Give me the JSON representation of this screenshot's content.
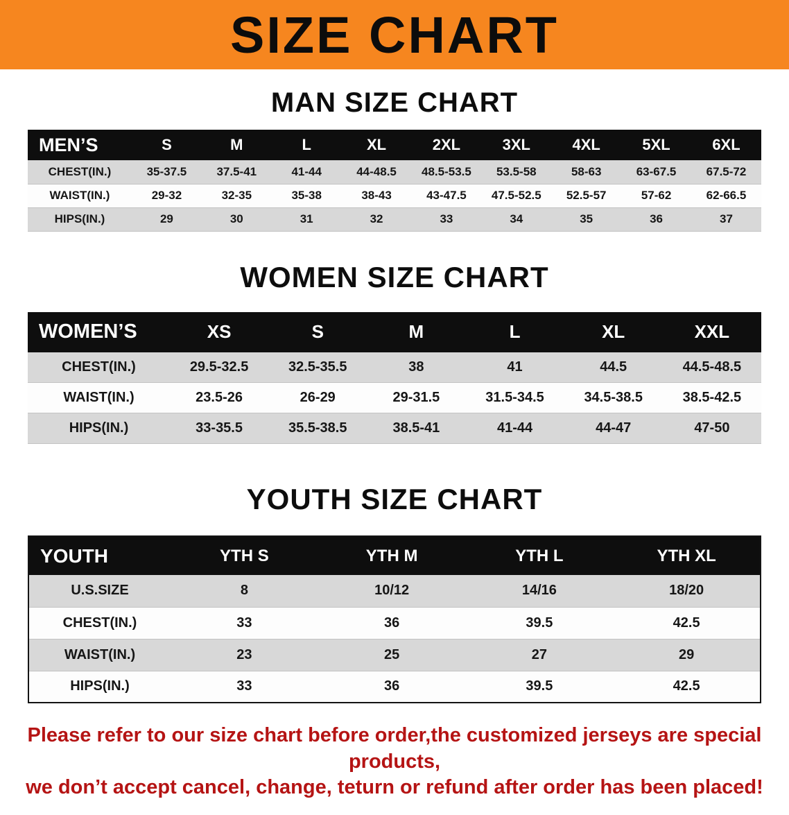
{
  "banner": {
    "title": "SIZE CHART",
    "bg_color": "#f6861f"
  },
  "sections": [
    {
      "heading": "MAN SIZE CHART",
      "table": {
        "header": [
          "MEN’S",
          "S",
          "M",
          "L",
          "XL",
          "2XL",
          "3XL",
          "4XL",
          "5XL",
          "6XL"
        ],
        "rows": [
          [
            "CHEST(IN.)",
            "35-37.5",
            "37.5-41",
            "41-44",
            "44-48.5",
            "48.5-53.5",
            "53.5-58",
            "58-63",
            "63-67.5",
            "67.5-72"
          ],
          [
            "WAIST(IN.)",
            "29-32",
            "32-35",
            "35-38",
            "38-43",
            "43-47.5",
            "47.5-52.5",
            "52.5-57",
            "57-62",
            "62-66.5"
          ],
          [
            "HIPS(IN.)",
            "29",
            "30",
            "31",
            "32",
            "33",
            "34",
            "35",
            "36",
            "37"
          ]
        ]
      }
    },
    {
      "heading": "WOMEN SIZE CHART",
      "table": {
        "header": [
          "WOMEN’S",
          "XS",
          "S",
          "M",
          "L",
          "XL",
          "XXL"
        ],
        "rows": [
          [
            "CHEST(IN.)",
            "29.5-32.5",
            "32.5-35.5",
            "38",
            "41",
            "44.5",
            "44.5-48.5"
          ],
          [
            "WAIST(IN.)",
            "23.5-26",
            "26-29",
            "29-31.5",
            "31.5-34.5",
            "34.5-38.5",
            "38.5-42.5"
          ],
          [
            "HIPS(IN.)",
            "33-35.5",
            "35.5-38.5",
            "38.5-41",
            "41-44",
            "44-47",
            "47-50"
          ]
        ]
      }
    },
    {
      "heading": "YOUTH SIZE CHART",
      "table": {
        "header": [
          "YOUTH",
          "YTH S",
          "YTH M",
          "YTH L",
          "YTH XL"
        ],
        "rows": [
          [
            "U.S.SIZE",
            "8",
            "10/12",
            "14/16",
            "18/20"
          ],
          [
            "CHEST(IN.)",
            "33",
            "36",
            "39.5",
            "42.5"
          ],
          [
            "WAIST(IN.)",
            "23",
            "25",
            "27",
            "29"
          ],
          [
            "HIPS(IN.)",
            "33",
            "36",
            "39.5",
            "42.5"
          ]
        ]
      }
    }
  ],
  "disclaimer": {
    "lines": [
      "Please refer to our size chart before order,the customized jerseys are special products,",
      "we don’t accept cancel, change, teturn or refund after order has been placed!"
    ],
    "color": "#b51414"
  }
}
